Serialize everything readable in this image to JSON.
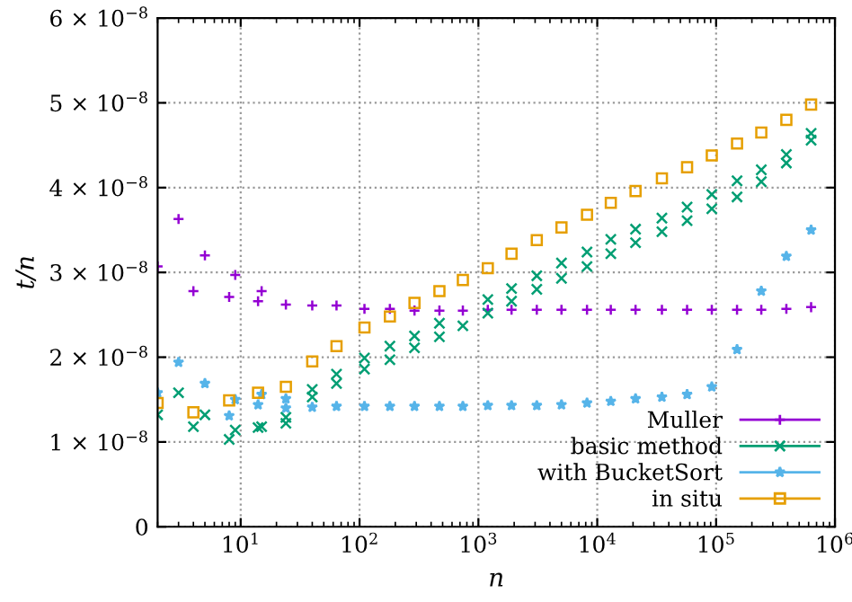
{
  "chart_data": {
    "type": "scatter",
    "xlabel": "n",
    "ylabel": "t/n",
    "log": "x",
    "grid": true,
    "legend": "bottom right",
    "xlim": [
      2,
      1000000
    ],
    "xticks": [
      {
        "value": 10,
        "label": "10$^{1}$"
      },
      {
        "value": 100,
        "label": "10$^{2}$"
      },
      {
        "value": 1000,
        "label": "10$^{3}$"
      },
      {
        "value": 10000,
        "label": "10$^{4}$"
      },
      {
        "value": 100000,
        "label": "10$^{5}$"
      },
      {
        "value": 1000000,
        "label": "10$^{6}$"
      }
    ],
    "ylim": [
      0,
      6e-08
    ],
    "yticks": [
      0,
      {
        "value": 1e-08,
        "label": "1 × 10$^{−8}$"
      },
      {
        "value": 2e-08,
        "label": "2 × 10$^{−8}$"
      },
      {
        "value": 3e-08,
        "label": "3 × 10$^{−8}$"
      },
      {
        "value": 4e-08,
        "label": "4 × 10$^{−8}$"
      },
      {
        "value": 5e-08,
        "label": "5 × 10$^{−8}$"
      },
      {
        "value": 6e-08,
        "label": "6 × 10$^{−8}$"
      }
    ],
    "series": [
      {
        "name": "Muller",
        "color": "#9400d3",
        "marker": "cross",
        "x": [
          2,
          3,
          4,
          5,
          8,
          9,
          14,
          15,
          24,
          40,
          64,
          110,
          180,
          290,
          470,
          740,
          1200,
          1900,
          3100,
          5000,
          8200,
          13000,
          21000,
          35000,
          57000,
          92000,
          150000,
          240000,
          390000,
          630000
        ],
        "values": [
          3.07e-08,
          3.63e-08,
          2.78e-08,
          3.2e-08,
          2.71e-08,
          2.97e-08,
          2.66e-08,
          2.78e-08,
          2.62e-08,
          2.61e-08,
          2.61e-08,
          2.57e-08,
          2.57e-08,
          2.55e-08,
          2.55e-08,
          2.55e-08,
          2.56e-08,
          2.56e-08,
          2.56e-08,
          2.56e-08,
          2.56e-08,
          2.56e-08,
          2.56e-08,
          2.56e-08,
          2.56e-08,
          2.56e-08,
          2.56e-08,
          2.56e-08,
          2.57e-08,
          2.59e-08
        ]
      },
      {
        "name": "basic method",
        "color": "#009e73",
        "marker": "x",
        "x": [
          2,
          3,
          4,
          5,
          8,
          9,
          14,
          15,
          24,
          24,
          40,
          40,
          64,
          64,
          110,
          110,
          180,
          180,
          290,
          290,
          470,
          470,
          740,
          1200,
          1200,
          1900,
          1900,
          3100,
          3100,
          5000,
          5000,
          8200,
          8200,
          13000,
          13000,
          21000,
          21000,
          35000,
          35000,
          57000,
          57000,
          92000,
          92000,
          150000,
          150000,
          240000,
          240000,
          390000,
          390000,
          630000,
          630000
        ],
        "values": [
          1.32e-08,
          1.58e-08,
          1.18e-08,
          1.32e-08,
          1.03e-08,
          1.14e-08,
          1.17e-08,
          1.18e-08,
          1.29e-08,
          1.22e-08,
          1.62e-08,
          1.53e-08,
          1.8e-08,
          1.69e-08,
          1.99e-08,
          1.86e-08,
          2.13e-08,
          1.97e-08,
          2.25e-08,
          2.11e-08,
          2.4e-08,
          2.24e-08,
          2.37e-08,
          2.68e-08,
          2.52e-08,
          2.81e-08,
          2.66e-08,
          2.96e-08,
          2.8e-08,
          3.11e-08,
          2.93e-08,
          3.24e-08,
          3.07e-08,
          3.39e-08,
          3.22e-08,
          3.51e-08,
          3.35e-08,
          3.64e-08,
          3.48e-08,
          3.77e-08,
          3.61e-08,
          3.92e-08,
          3.75e-08,
          4.08e-08,
          3.89e-08,
          4.21e-08,
          4.07e-08,
          4.39e-08,
          4.29e-08,
          4.64e-08,
          4.56e-08
        ]
      },
      {
        "name": "with BucketSort",
        "color": "#56b4e9",
        "marker": "star",
        "x": [
          2,
          3,
          5,
          8,
          9,
          14,
          15,
          24,
          24,
          40,
          64,
          110,
          180,
          290,
          470,
          740,
          1200,
          1900,
          3100,
          5000,
          8200,
          13000,
          21000,
          35000,
          57000,
          92000,
          150000,
          240000,
          390000,
          630000
        ],
        "values": [
          1.58e-08,
          1.94e-08,
          1.69e-08,
          1.31e-08,
          1.5e-08,
          1.44e-08,
          1.56e-08,
          1.4e-08,
          1.51e-08,
          1.41e-08,
          1.42e-08,
          1.42e-08,
          1.42e-08,
          1.42e-08,
          1.42e-08,
          1.42e-08,
          1.43e-08,
          1.43e-08,
          1.43e-08,
          1.44e-08,
          1.46e-08,
          1.48e-08,
          1.51e-08,
          1.53e-08,
          1.56e-08,
          1.65e-08,
          2.09e-08,
          2.78e-08,
          3.19e-08,
          3.5e-08
        ]
      },
      {
        "name": "in situ",
        "color": "#e69f00",
        "marker": "square",
        "x": [
          2,
          4,
          8,
          14,
          24,
          40,
          64,
          110,
          180,
          290,
          470,
          740,
          1200,
          1900,
          3100,
          5000,
          8200,
          13000,
          21000,
          35000,
          57000,
          92000,
          150000,
          240000,
          390000,
          630000
        ],
        "values": [
          1.46e-08,
          1.35e-08,
          1.49e-08,
          1.58e-08,
          1.65e-08,
          1.95e-08,
          2.13e-08,
          2.35e-08,
          2.48e-08,
          2.64e-08,
          2.78e-08,
          2.91e-08,
          3.05e-08,
          3.22e-08,
          3.38e-08,
          3.53e-08,
          3.68e-08,
          3.82e-08,
          3.96e-08,
          4.11e-08,
          4.24e-08,
          4.38e-08,
          4.52e-08,
          4.65e-08,
          4.8e-08,
          4.98e-08
        ]
      }
    ]
  }
}
